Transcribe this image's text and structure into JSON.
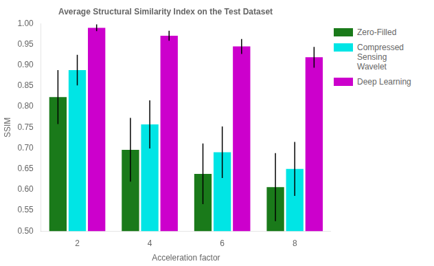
{
  "chart_data": {
    "type": "bar",
    "title": "Average Structural Similarity Index on the Test Dataset",
    "x_label": "Acceleration factor",
    "y_label": "SSIM",
    "categories": [
      2,
      4,
      6,
      8
    ],
    "series": [
      {
        "name": "Zero-Filled",
        "color": "#1a7a1a",
        "values": [
          0.823,
          0.696,
          0.638,
          0.606
        ],
        "errors": [
          0.065,
          0.077,
          0.073,
          0.082
        ]
      },
      {
        "name": "Compressed Sensing\nWavelet",
        "color": "#00e5e5",
        "values": [
          0.888,
          0.757,
          0.69,
          0.65
        ],
        "errors": [
          0.037,
          0.058,
          0.062,
          0.065
        ]
      },
      {
        "name": "Deep Learning",
        "color": "#cc00cc",
        "values": [
          0.99,
          0.971,
          0.945,
          0.919
        ],
        "errors": [
          0.008,
          0.012,
          0.018,
          0.025
        ]
      }
    ],
    "ylim": [
      0.5,
      1.0
    ],
    "yticks": [
      {
        "value": 0.5,
        "label": "0.50"
      },
      0.55,
      {
        "value": 0.6,
        "label": "0.60"
      },
      0.65,
      {
        "value": 0.7,
        "label": "0.70"
      },
      0.75,
      {
        "value": 0.8,
        "label": "0.80"
      },
      0.85,
      {
        "value": 0.9,
        "label": "0.90"
      },
      0.95,
      {
        "value": 1.0,
        "label": "1.00"
      }
    ],
    "grid": false,
    "legend": "right"
  }
}
